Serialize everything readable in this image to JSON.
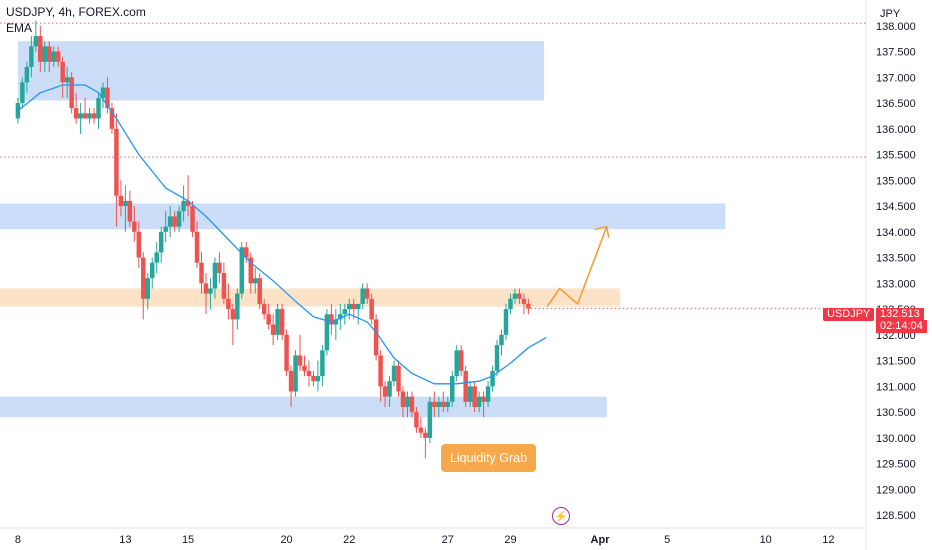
{
  "header": {
    "title": "USDJPY, 4h, FOREX.com",
    "indicator": "EMA"
  },
  "price_axis": {
    "currency": "JPY"
  },
  "price_label": {
    "symbol": "USDJPY",
    "price": "132.513",
    "countdown": "02:14:04"
  },
  "annotation": {
    "text": "Liquidity Grab"
  },
  "icons": {
    "bolt": "lightning-bolt-icon"
  },
  "colors": {
    "up": "#26a69a",
    "down": "#ef5350",
    "ema": "#2196f3",
    "supply_zone": "#c9dcf7",
    "demand_zone": "#fce0c4",
    "projection": "#f59e3b",
    "dotted_level": "#f23645",
    "price_tag": "#f23645"
  },
  "chart_data": {
    "type": "candlestick",
    "symbol": "USDJPY",
    "timeframe": "4h",
    "exchange": "FOREX.com",
    "indicators": [
      "EMA"
    ],
    "yticks": [
      "138.000",
      "137.500",
      "137.000",
      "136.500",
      "136.000",
      "135.500",
      "135.000",
      "134.500",
      "134.000",
      "133.500",
      "133.000",
      "132.500",
      "132.000",
      "131.500",
      "131.000",
      "130.500",
      "130.000",
      "129.500",
      "129.000",
      "128.500"
    ],
    "xticks": [
      {
        "label": "8",
        "idx": 0
      },
      {
        "label": "13",
        "idx": 24
      },
      {
        "label": "15",
        "idx": 38
      },
      {
        "label": "20",
        "idx": 60
      },
      {
        "label": "22",
        "idx": 74
      },
      {
        "label": "27",
        "idx": 96
      },
      {
        "label": "29",
        "idx": 110
      },
      {
        "label": "Apr",
        "idx": 130,
        "bold": true
      },
      {
        "label": "5",
        "idx": 145
      },
      {
        "label": "10",
        "idx": 167
      },
      {
        "label": "12",
        "idx": 181
      }
    ],
    "xlim": [
      -4,
      189.4
    ],
    "ylim": [
      128.25,
      138.5
    ],
    "grid": false,
    "candles": [
      [
        136.2,
        136.6,
        136.1,
        136.5
      ],
      [
        136.5,
        137.0,
        136.4,
        136.9
      ],
      [
        136.9,
        137.3,
        136.7,
        137.2
      ],
      [
        137.2,
        137.8,
        137.0,
        137.6
      ],
      [
        137.6,
        138.1,
        137.5,
        137.8
      ],
      [
        137.8,
        138.0,
        137.1,
        137.3
      ],
      [
        137.3,
        137.7,
        137.1,
        137.6
      ],
      [
        137.6,
        137.7,
        137.1,
        137.3
      ],
      [
        137.3,
        137.6,
        137.2,
        137.5
      ],
      [
        137.5,
        137.6,
        137.2,
        137.3
      ],
      [
        137.3,
        137.4,
        136.6,
        136.9
      ],
      [
        136.9,
        137.2,
        136.6,
        137.0
      ],
      [
        137.0,
        137.1,
        136.3,
        136.4
      ],
      [
        136.4,
        136.7,
        136.1,
        136.2
      ],
      [
        136.2,
        136.5,
        135.9,
        136.3
      ],
      [
        136.3,
        136.6,
        136.2,
        136.2
      ],
      [
        136.2,
        136.4,
        136.1,
        136.3
      ],
      [
        136.3,
        136.4,
        136.1,
        136.2
      ],
      [
        136.2,
        136.7,
        136.0,
        136.6
      ],
      [
        136.6,
        136.9,
        136.4,
        136.8
      ],
      [
        136.8,
        137.0,
        136.3,
        136.4
      ],
      [
        136.4,
        136.5,
        135.9,
        136.0
      ],
      [
        136.0,
        136.3,
        134.1,
        134.7
      ],
      [
        134.7,
        135.0,
        134.3,
        134.5
      ],
      [
        134.5,
        134.9,
        134.0,
        134.6
      ],
      [
        134.6,
        134.8,
        134.1,
        134.2
      ],
      [
        134.2,
        134.5,
        133.8,
        134.0
      ],
      [
        134.0,
        134.2,
        133.3,
        133.5
      ],
      [
        133.5,
        133.6,
        132.3,
        132.7
      ],
      [
        132.7,
        133.2,
        132.5,
        133.1
      ],
      [
        133.1,
        133.5,
        132.9,
        133.4
      ],
      [
        133.4,
        133.8,
        133.2,
        133.6
      ],
      [
        133.6,
        134.1,
        133.4,
        134.0
      ],
      [
        134.0,
        134.4,
        133.8,
        134.1
      ],
      [
        134.1,
        134.5,
        133.9,
        134.3
      ],
      [
        134.3,
        134.4,
        134.0,
        134.1
      ],
      [
        134.1,
        134.5,
        134.0,
        134.4
      ],
      [
        134.4,
        134.9,
        134.2,
        134.6
      ],
      [
        134.6,
        135.1,
        134.3,
        134.5
      ],
      [
        134.5,
        134.6,
        133.9,
        134.0
      ],
      [
        134.0,
        134.2,
        133.3,
        133.4
      ],
      [
        133.4,
        133.6,
        132.8,
        133.0
      ],
      [
        133.0,
        133.2,
        132.4,
        132.8
      ],
      [
        132.8,
        133.1,
        132.5,
        132.9
      ],
      [
        132.9,
        133.5,
        132.7,
        133.4
      ],
      [
        133.4,
        133.6,
        133.0,
        133.2
      ],
      [
        133.2,
        133.4,
        132.6,
        132.7
      ],
      [
        132.7,
        133.0,
        132.3,
        132.5
      ],
      [
        132.5,
        132.6,
        131.8,
        132.3
      ],
      [
        132.3,
        132.9,
        132.1,
        132.8
      ],
      [
        132.8,
        133.8,
        132.7,
        133.7
      ],
      [
        133.7,
        133.8,
        133.4,
        133.5
      ],
      [
        133.5,
        133.6,
        132.8,
        133.0
      ],
      [
        133.0,
        133.3,
        132.8,
        133.1
      ],
      [
        133.1,
        133.2,
        132.5,
        132.6
      ],
      [
        132.6,
        132.7,
        132.3,
        132.4
      ],
      [
        132.4,
        132.6,
        132.1,
        132.2
      ],
      [
        132.2,
        132.4,
        131.8,
        132.0
      ],
      [
        132.0,
        132.6,
        131.9,
        132.5
      ],
      [
        132.5,
        132.6,
        131.9,
        132.0
      ],
      [
        132.0,
        132.1,
        131.2,
        131.3
      ],
      [
        131.3,
        131.4,
        130.6,
        130.9
      ],
      [
        130.9,
        131.7,
        130.8,
        131.6
      ],
      [
        131.6,
        132.0,
        131.3,
        131.4
      ],
      [
        131.4,
        131.6,
        131.2,
        131.3
      ],
      [
        131.3,
        131.5,
        131.0,
        131.2
      ],
      [
        131.2,
        131.3,
        131.0,
        131.1
      ],
      [
        131.1,
        131.5,
        130.9,
        131.2
      ],
      [
        131.2,
        131.8,
        131.0,
        131.7
      ],
      [
        131.7,
        132.5,
        131.6,
        132.4
      ],
      [
        132.4,
        132.6,
        132.0,
        132.2
      ],
      [
        132.2,
        132.5,
        131.9,
        132.3
      ],
      [
        132.3,
        132.6,
        132.1,
        132.4
      ],
      [
        132.4,
        132.6,
        132.2,
        132.5
      ],
      [
        132.5,
        132.7,
        132.3,
        132.6
      ],
      [
        132.6,
        132.7,
        132.3,
        132.5
      ],
      [
        132.5,
        132.6,
        132.2,
        132.6
      ],
      [
        132.6,
        133.0,
        132.5,
        132.9
      ],
      [
        132.9,
        133.0,
        132.6,
        132.7
      ],
      [
        132.7,
        132.8,
        132.2,
        132.3
      ],
      [
        132.3,
        132.4,
        131.5,
        131.6
      ],
      [
        131.6,
        131.7,
        130.7,
        131.0
      ],
      [
        131.0,
        131.1,
        130.6,
        130.8
      ],
      [
        130.8,
        131.2,
        130.6,
        131.1
      ],
      [
        131.1,
        131.5,
        131.0,
        131.4
      ],
      [
        131.4,
        131.5,
        130.8,
        130.9
      ],
      [
        130.9,
        131.0,
        130.4,
        130.6
      ],
      [
        130.6,
        130.9,
        130.4,
        130.8
      ],
      [
        130.8,
        130.9,
        130.4,
        130.5
      ],
      [
        130.5,
        130.6,
        130.1,
        130.2
      ],
      [
        130.2,
        130.4,
        130.0,
        130.1
      ],
      [
        130.1,
        130.2,
        129.6,
        130.0
      ],
      [
        130.0,
        130.8,
        129.9,
        130.7
      ],
      [
        130.7,
        130.9,
        130.4,
        130.6
      ],
      [
        130.6,
        130.8,
        130.4,
        130.7
      ],
      [
        130.7,
        130.9,
        130.5,
        130.6
      ],
      [
        130.6,
        130.8,
        130.5,
        130.7
      ],
      [
        130.7,
        131.3,
        130.6,
        131.2
      ],
      [
        131.2,
        131.8,
        131.1,
        131.7
      ],
      [
        131.7,
        131.8,
        131.2,
        131.3
      ],
      [
        131.3,
        131.4,
        130.6,
        130.7
      ],
      [
        130.7,
        131.1,
        130.6,
        131.0
      ],
      [
        131.0,
        131.1,
        130.5,
        130.6
      ],
      [
        130.6,
        130.9,
        130.5,
        130.8
      ],
      [
        130.8,
        130.9,
        130.4,
        130.7
      ],
      [
        130.7,
        131.1,
        130.6,
        131.0
      ],
      [
        131.0,
        131.4,
        130.9,
        131.3
      ],
      [
        131.3,
        131.9,
        131.2,
        131.8
      ],
      [
        131.8,
        132.1,
        131.6,
        132.0
      ],
      [
        132.0,
        132.6,
        131.9,
        132.5
      ],
      [
        132.5,
        132.8,
        132.4,
        132.7
      ],
      [
        132.7,
        132.9,
        132.6,
        132.8
      ],
      [
        132.8,
        132.9,
        132.6,
        132.7
      ],
      [
        132.7,
        132.8,
        132.4,
        132.6
      ],
      [
        132.6,
        132.7,
        132.4,
        132.51
      ]
    ],
    "ema": [
      [
        0,
        136.35
      ],
      [
        5,
        136.7
      ],
      [
        10,
        136.85
      ],
      [
        15,
        136.85
      ],
      [
        18,
        136.7
      ],
      [
        22,
        136.2
      ],
      [
        27,
        135.5
      ],
      [
        33,
        134.85
      ],
      [
        38,
        134.6
      ],
      [
        42,
        134.3
      ],
      [
        47,
        133.85
      ],
      [
        52,
        133.4
      ],
      [
        57,
        133.05
      ],
      [
        62,
        132.65
      ],
      [
        66,
        132.35
      ],
      [
        70,
        132.25
      ],
      [
        74,
        132.4
      ],
      [
        78,
        132.25
      ],
      [
        80,
        132.05
      ],
      [
        84,
        131.55
      ],
      [
        88,
        131.25
      ],
      [
        93,
        131.05
      ],
      [
        98,
        131.05
      ],
      [
        103,
        131.1
      ],
      [
        106,
        131.2
      ],
      [
        110,
        131.45
      ],
      [
        114,
        131.75
      ],
      [
        118,
        131.95
      ]
    ],
    "supply_zones": [
      {
        "from": 0,
        "to": 117.5,
        "top": 137.7,
        "bottom": 136.55
      },
      {
        "from": -4,
        "to": 158,
        "top": 134.55,
        "bottom": 134.05
      },
      {
        "from": -4,
        "to": 131.5,
        "top": 130.8,
        "bottom": 130.4
      }
    ],
    "demand_zones": [
      {
        "from": -4,
        "to": 134.5,
        "top": 132.9,
        "bottom": 132.55
      }
    ],
    "dotted_levels": [
      138.05,
      135.45
    ],
    "projection": [
      [
        118.2,
        132.55
      ],
      [
        121,
        132.9
      ],
      [
        125,
        132.6
      ],
      [
        131.5,
        134.1
      ]
    ],
    "last_price": 132.513
  }
}
